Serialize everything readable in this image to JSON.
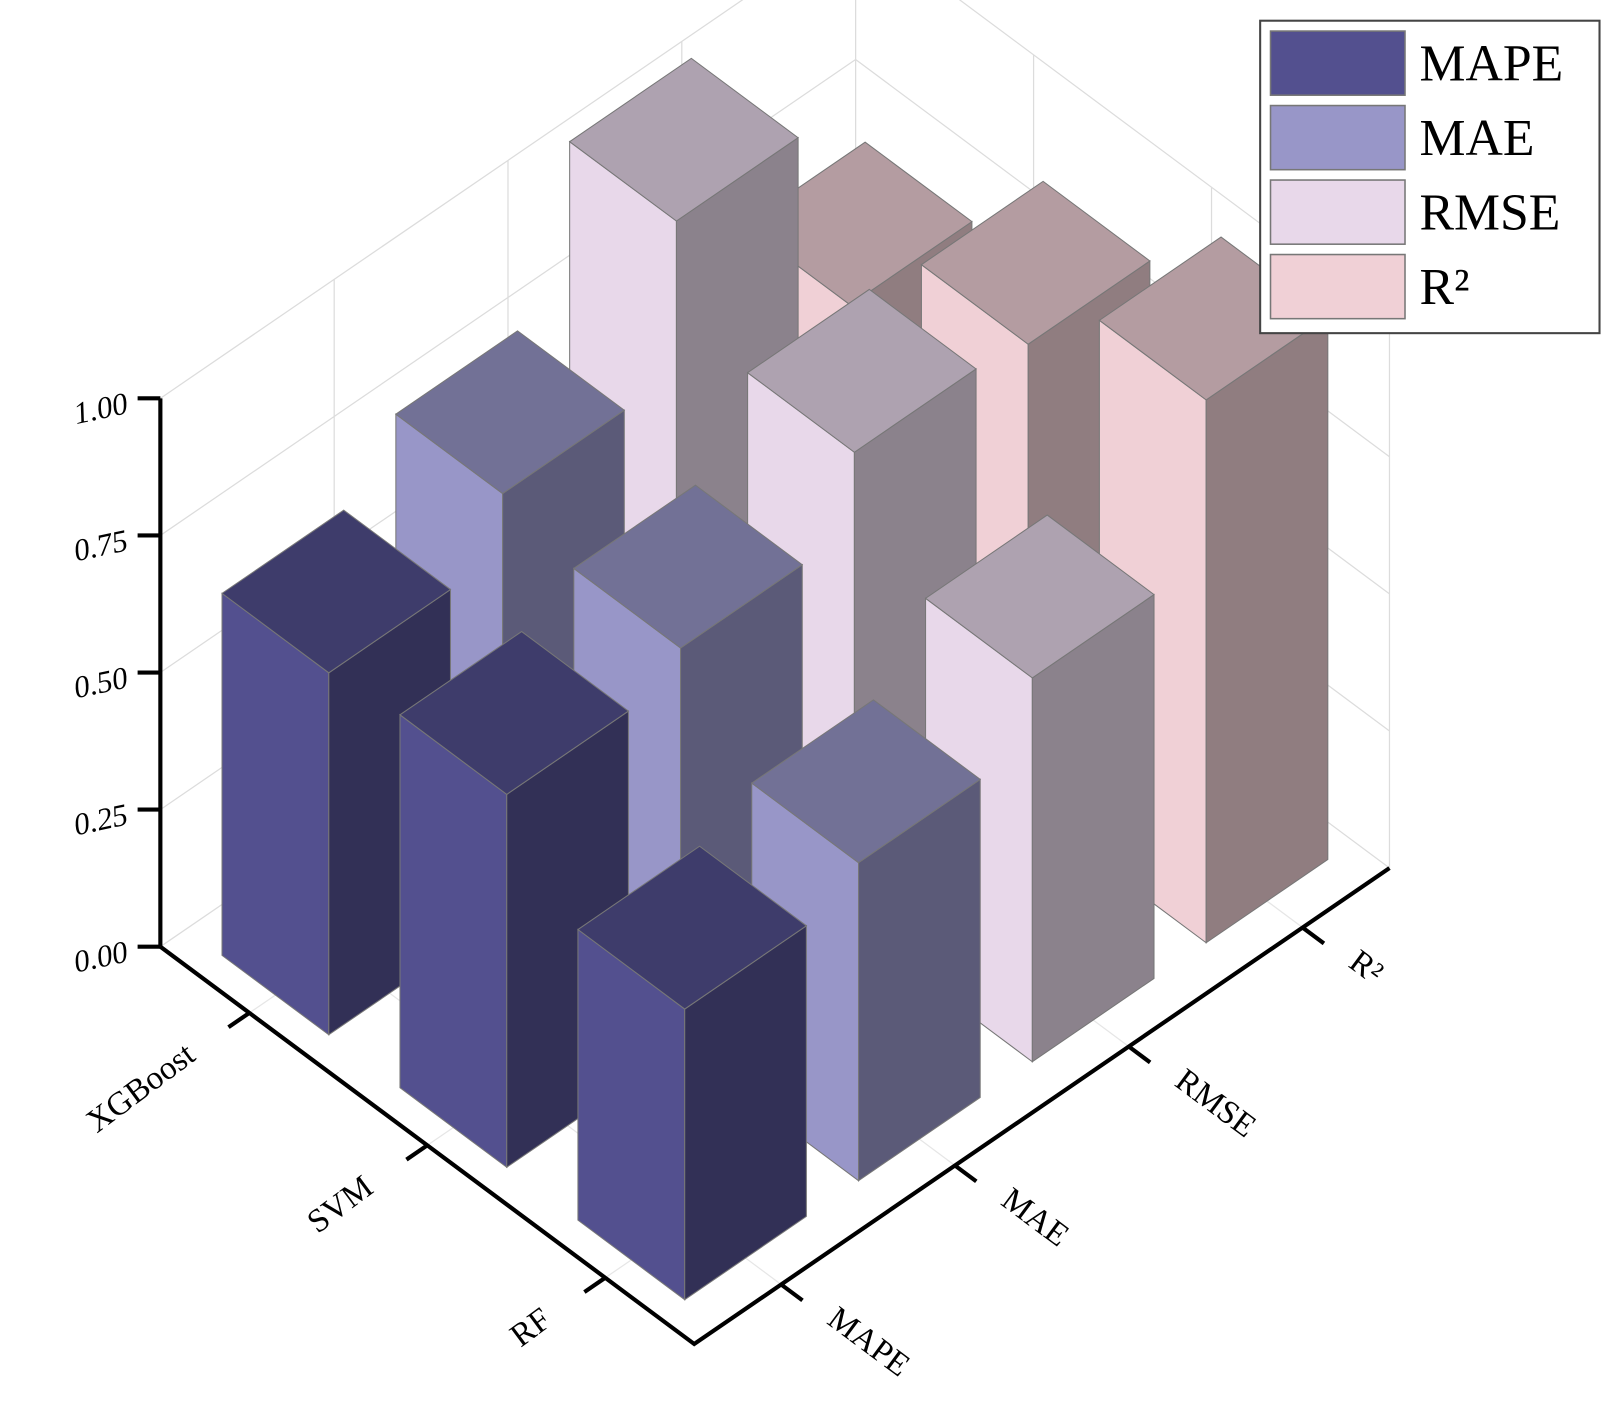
{
  "chart_data": {
    "type": "bar3d",
    "categories": [
      "XGBoost",
      "SVM",
      "RF"
    ],
    "series": [
      {
        "name": "MAPE",
        "color": "#53508f",
        "values": [
          0.66,
          0.68,
          0.53
        ]
      },
      {
        "name": "MAE",
        "color": "#9896c8",
        "values": [
          0.77,
          0.73,
          0.58
        ]
      },
      {
        "name": "RMSE",
        "color": "#e8d8ea",
        "values": [
          1.05,
          0.87,
          0.7
        ]
      },
      {
        "name": "R²",
        "color": "#f0d0d6",
        "values": [
          0.68,
          0.85,
          0.99
        ]
      }
    ],
    "ylim": [
      0,
      1
    ],
    "yticks": [
      {
        "value": 0,
        "label": "0.00"
      },
      {
        "value": 0.25,
        "label": "0.25"
      },
      {
        "value": 0.5,
        "label": "0.50"
      },
      {
        "value": 0.75,
        "label": "0.75"
      },
      {
        "value": 1,
        "label": "1.00"
      }
    ],
    "grid": true,
    "legend": "top-right"
  }
}
